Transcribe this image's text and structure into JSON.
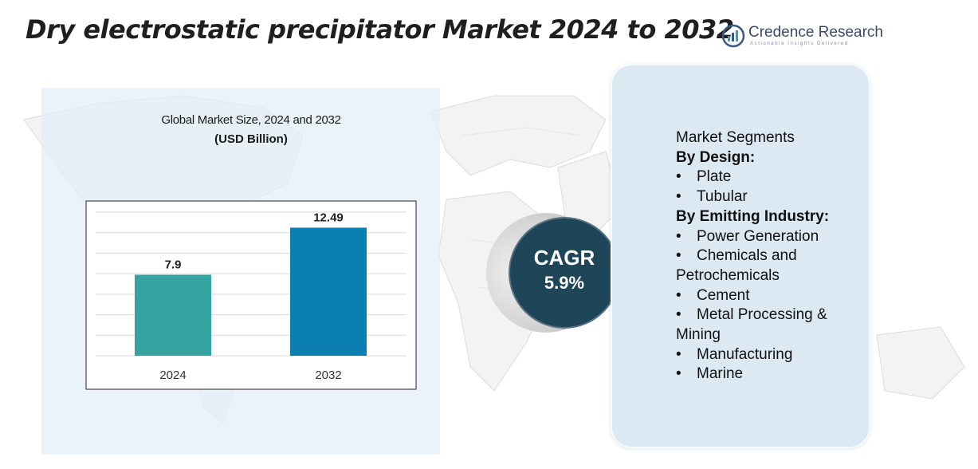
{
  "title": "Dry electrostatic precipitator Market 2024 to 2032",
  "logo": {
    "name": "Credence Research",
    "tagline": "Actionable Insights Delivered"
  },
  "chart_data": {
    "type": "bar",
    "title": "Global Market Size, 2024 and 2032",
    "ylabel": "(USD Billion)",
    "categories": [
      "2024",
      "2032"
    ],
    "values": [
      7.9,
      12.49
    ],
    "value_labels": [
      "7.9",
      "12.49"
    ],
    "colors": [
      "#36a3a3",
      "#0b7fb1"
    ],
    "ylim": [
      0,
      14
    ],
    "grid": true
  },
  "cagr": {
    "label": "CAGR",
    "value": "5.9%"
  },
  "segments": {
    "heading": "Market Segments",
    "groups": [
      {
        "name": "By Design:",
        "items": [
          "Plate",
          "Tubular"
        ]
      },
      {
        "name": "By Emitting Industry:",
        "items": [
          "Power Generation",
          "Chemicals and Petrochemicals",
          "Cement",
          "Metal Processing & Mining",
          "Manufacturing",
          "Marine"
        ]
      }
    ]
  },
  "colors": {
    "panel": "#e1eef6",
    "cagr_circle": "#1f4558",
    "segment_panel": "#dce9f2"
  }
}
